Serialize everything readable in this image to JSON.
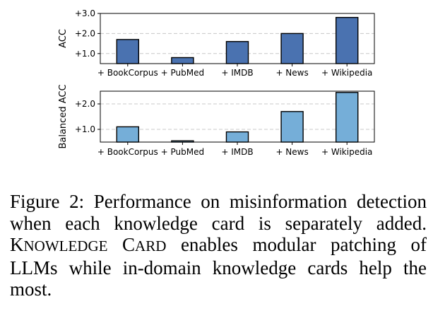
{
  "chart_data": [
    {
      "type": "bar",
      "ylabel": "ACC",
      "categories": [
        "+ BookCorpus",
        "+ PubMed",
        "+ IMDB",
        "+ News",
        "+ Wikipedia"
      ],
      "values": [
        1.7,
        0.8,
        1.6,
        2.0,
        2.8
      ],
      "yticks": [
        1.0,
        2.0,
        3.0
      ],
      "ytick_labels": [
        "+1.0",
        "+2.0",
        "+3.0"
      ],
      "ylim": [
        0.5,
        3.0
      ],
      "grid": "horizontal dashed",
      "bar_color": "#4a72b0"
    },
    {
      "type": "bar",
      "ylabel": "Balanced ACC",
      "categories": [
        "+ BookCorpus",
        "+ PubMed",
        "+ IMDB",
        "+ News",
        "+ Wikipedia"
      ],
      "values": [
        1.1,
        0.55,
        0.9,
        1.7,
        2.45
      ],
      "yticks": [
        1.0,
        2.0
      ],
      "ytick_labels": [
        "+1.0",
        "+2.0"
      ],
      "ylim": [
        0.5,
        2.5
      ],
      "grid": "horizontal dashed",
      "bar_color": "#75aed8"
    }
  ],
  "caption": {
    "label": "Figure 2:",
    "text_before": "Performance on misinformation detection when each knowledge card is separately added.",
    "name_first_initial": "K",
    "name_first_rest": "NOWLEDGE",
    "name_second_initial": "C",
    "name_second_rest": "ARD",
    "text_after": "enables modular patching of LLMs while in-domain knowledge cards help the most."
  }
}
